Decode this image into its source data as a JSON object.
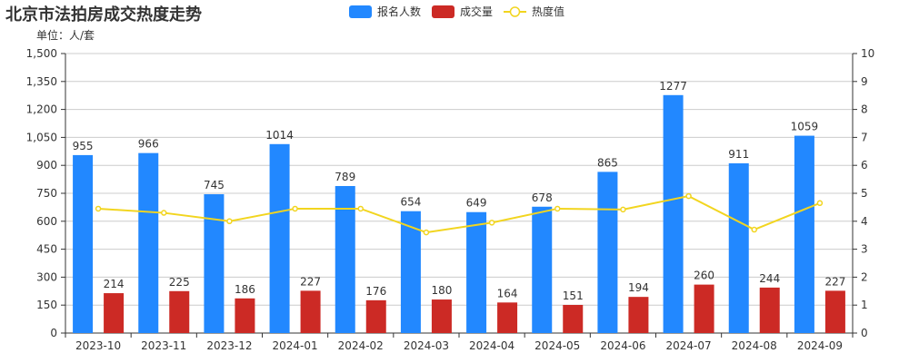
{
  "header": {
    "title": "北京市法拍房成交热度走势",
    "unit_label": "单位：人/套"
  },
  "legend": {
    "items": [
      {
        "label": "报名人数",
        "color": "#2288ff",
        "type": "bar"
      },
      {
        "label": "成交量",
        "color": "#cc2a25",
        "type": "bar"
      },
      {
        "label": "热度值",
        "color": "#f2d51f",
        "type": "line"
      }
    ]
  },
  "chart_data": {
    "type": "bar",
    "title": "北京市法拍房成交热度走势",
    "subtitle": "单位：人/套",
    "categories": [
      "2023-10",
      "2023-11",
      "2023-12",
      "2024-01",
      "2024-02",
      "2024-03",
      "2024-04",
      "2024-05",
      "2024-06",
      "2024-07",
      "2024-08",
      "2024-09"
    ],
    "series": [
      {
        "name": "报名人数",
        "type": "bar",
        "axis": "left",
        "color": "#2288ff",
        "values": [
          955,
          966,
          745,
          1014,
          789,
          654,
          649,
          678,
          865,
          1277,
          911,
          1059
        ]
      },
      {
        "name": "成交量",
        "type": "bar",
        "axis": "left",
        "color": "#cc2a25",
        "values": [
          214,
          225,
          186,
          227,
          176,
          180,
          164,
          151,
          194,
          260,
          244,
          227
        ]
      },
      {
        "name": "热度值",
        "type": "line",
        "axis": "right",
        "color": "#f2d51f",
        "values": [
          4.45,
          4.3,
          4.0,
          4.45,
          4.45,
          3.6,
          3.95,
          4.45,
          4.42,
          4.9,
          3.7,
          4.65
        ]
      }
    ],
    "left_axis": {
      "min": 0,
      "max": 1500,
      "ticks": [
        "0",
        "150",
        "300",
        "450",
        "600",
        "750",
        "900",
        "1,050",
        "1,200",
        "1,350",
        "1,500"
      ]
    },
    "right_axis": {
      "min": 0,
      "max": 10,
      "ticks": [
        "0",
        "1",
        "2",
        "3",
        "4",
        "5",
        "6",
        "7",
        "8",
        "9",
        "10"
      ]
    },
    "grid": true,
    "legend_position": "top"
  }
}
